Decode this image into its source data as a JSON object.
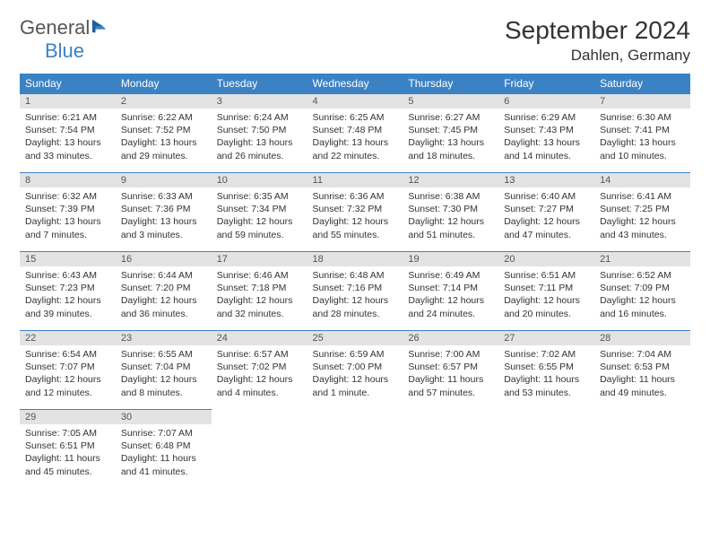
{
  "logo": {
    "general": "General",
    "blue": "Blue"
  },
  "title": "September 2024",
  "location": "Dahlen, Germany",
  "colors": {
    "header_bg": "#3b82c4",
    "header_text": "#ffffff",
    "daynum_bg": "#e3e3e3",
    "border": "#3b82c4",
    "text": "#333333"
  },
  "weekdays": [
    "Sunday",
    "Monday",
    "Tuesday",
    "Wednesday",
    "Thursday",
    "Friday",
    "Saturday"
  ],
  "days": {
    "1": {
      "sunrise": "Sunrise: 6:21 AM",
      "sunset": "Sunset: 7:54 PM",
      "daylight1": "Daylight: 13 hours",
      "daylight2": "and 33 minutes."
    },
    "2": {
      "sunrise": "Sunrise: 6:22 AM",
      "sunset": "Sunset: 7:52 PM",
      "daylight1": "Daylight: 13 hours",
      "daylight2": "and 29 minutes."
    },
    "3": {
      "sunrise": "Sunrise: 6:24 AM",
      "sunset": "Sunset: 7:50 PM",
      "daylight1": "Daylight: 13 hours",
      "daylight2": "and 26 minutes."
    },
    "4": {
      "sunrise": "Sunrise: 6:25 AM",
      "sunset": "Sunset: 7:48 PM",
      "daylight1": "Daylight: 13 hours",
      "daylight2": "and 22 minutes."
    },
    "5": {
      "sunrise": "Sunrise: 6:27 AM",
      "sunset": "Sunset: 7:45 PM",
      "daylight1": "Daylight: 13 hours",
      "daylight2": "and 18 minutes."
    },
    "6": {
      "sunrise": "Sunrise: 6:29 AM",
      "sunset": "Sunset: 7:43 PM",
      "daylight1": "Daylight: 13 hours",
      "daylight2": "and 14 minutes."
    },
    "7": {
      "sunrise": "Sunrise: 6:30 AM",
      "sunset": "Sunset: 7:41 PM",
      "daylight1": "Daylight: 13 hours",
      "daylight2": "and 10 minutes."
    },
    "8": {
      "sunrise": "Sunrise: 6:32 AM",
      "sunset": "Sunset: 7:39 PM",
      "daylight1": "Daylight: 13 hours",
      "daylight2": "and 7 minutes."
    },
    "9": {
      "sunrise": "Sunrise: 6:33 AM",
      "sunset": "Sunset: 7:36 PM",
      "daylight1": "Daylight: 13 hours",
      "daylight2": "and 3 minutes."
    },
    "10": {
      "sunrise": "Sunrise: 6:35 AM",
      "sunset": "Sunset: 7:34 PM",
      "daylight1": "Daylight: 12 hours",
      "daylight2": "and 59 minutes."
    },
    "11": {
      "sunrise": "Sunrise: 6:36 AM",
      "sunset": "Sunset: 7:32 PM",
      "daylight1": "Daylight: 12 hours",
      "daylight2": "and 55 minutes."
    },
    "12": {
      "sunrise": "Sunrise: 6:38 AM",
      "sunset": "Sunset: 7:30 PM",
      "daylight1": "Daylight: 12 hours",
      "daylight2": "and 51 minutes."
    },
    "13": {
      "sunrise": "Sunrise: 6:40 AM",
      "sunset": "Sunset: 7:27 PM",
      "daylight1": "Daylight: 12 hours",
      "daylight2": "and 47 minutes."
    },
    "14": {
      "sunrise": "Sunrise: 6:41 AM",
      "sunset": "Sunset: 7:25 PM",
      "daylight1": "Daylight: 12 hours",
      "daylight2": "and 43 minutes."
    },
    "15": {
      "sunrise": "Sunrise: 6:43 AM",
      "sunset": "Sunset: 7:23 PM",
      "daylight1": "Daylight: 12 hours",
      "daylight2": "and 39 minutes."
    },
    "16": {
      "sunrise": "Sunrise: 6:44 AM",
      "sunset": "Sunset: 7:20 PM",
      "daylight1": "Daylight: 12 hours",
      "daylight2": "and 36 minutes."
    },
    "17": {
      "sunrise": "Sunrise: 6:46 AM",
      "sunset": "Sunset: 7:18 PM",
      "daylight1": "Daylight: 12 hours",
      "daylight2": "and 32 minutes."
    },
    "18": {
      "sunrise": "Sunrise: 6:48 AM",
      "sunset": "Sunset: 7:16 PM",
      "daylight1": "Daylight: 12 hours",
      "daylight2": "and 28 minutes."
    },
    "19": {
      "sunrise": "Sunrise: 6:49 AM",
      "sunset": "Sunset: 7:14 PM",
      "daylight1": "Daylight: 12 hours",
      "daylight2": "and 24 minutes."
    },
    "20": {
      "sunrise": "Sunrise: 6:51 AM",
      "sunset": "Sunset: 7:11 PM",
      "daylight1": "Daylight: 12 hours",
      "daylight2": "and 20 minutes."
    },
    "21": {
      "sunrise": "Sunrise: 6:52 AM",
      "sunset": "Sunset: 7:09 PM",
      "daylight1": "Daylight: 12 hours",
      "daylight2": "and 16 minutes."
    },
    "22": {
      "sunrise": "Sunrise: 6:54 AM",
      "sunset": "Sunset: 7:07 PM",
      "daylight1": "Daylight: 12 hours",
      "daylight2": "and 12 minutes."
    },
    "23": {
      "sunrise": "Sunrise: 6:55 AM",
      "sunset": "Sunset: 7:04 PM",
      "daylight1": "Daylight: 12 hours",
      "daylight2": "and 8 minutes."
    },
    "24": {
      "sunrise": "Sunrise: 6:57 AM",
      "sunset": "Sunset: 7:02 PM",
      "daylight1": "Daylight: 12 hours",
      "daylight2": "and 4 minutes."
    },
    "25": {
      "sunrise": "Sunrise: 6:59 AM",
      "sunset": "Sunset: 7:00 PM",
      "daylight1": "Daylight: 12 hours",
      "daylight2": "and 1 minute."
    },
    "26": {
      "sunrise": "Sunrise: 7:00 AM",
      "sunset": "Sunset: 6:57 PM",
      "daylight1": "Daylight: 11 hours",
      "daylight2": "and 57 minutes."
    },
    "27": {
      "sunrise": "Sunrise: 7:02 AM",
      "sunset": "Sunset: 6:55 PM",
      "daylight1": "Daylight: 11 hours",
      "daylight2": "and 53 minutes."
    },
    "28": {
      "sunrise": "Sunrise: 7:04 AM",
      "sunset": "Sunset: 6:53 PM",
      "daylight1": "Daylight: 11 hours",
      "daylight2": "and 49 minutes."
    },
    "29": {
      "sunrise": "Sunrise: 7:05 AM",
      "sunset": "Sunset: 6:51 PM",
      "daylight1": "Daylight: 11 hours",
      "daylight2": "and 45 minutes."
    },
    "30": {
      "sunrise": "Sunrise: 7:07 AM",
      "sunset": "Sunset: 6:48 PM",
      "daylight1": "Daylight: 11 hours",
      "daylight2": "and 41 minutes."
    }
  },
  "nums": {
    "1": "1",
    "2": "2",
    "3": "3",
    "4": "4",
    "5": "5",
    "6": "6",
    "7": "7",
    "8": "8",
    "9": "9",
    "10": "10",
    "11": "11",
    "12": "12",
    "13": "13",
    "14": "14",
    "15": "15",
    "16": "16",
    "17": "17",
    "18": "18",
    "19": "19",
    "20": "20",
    "21": "21",
    "22": "22",
    "23": "23",
    "24": "24",
    "25": "25",
    "26": "26",
    "27": "27",
    "28": "28",
    "29": "29",
    "30": "30"
  }
}
